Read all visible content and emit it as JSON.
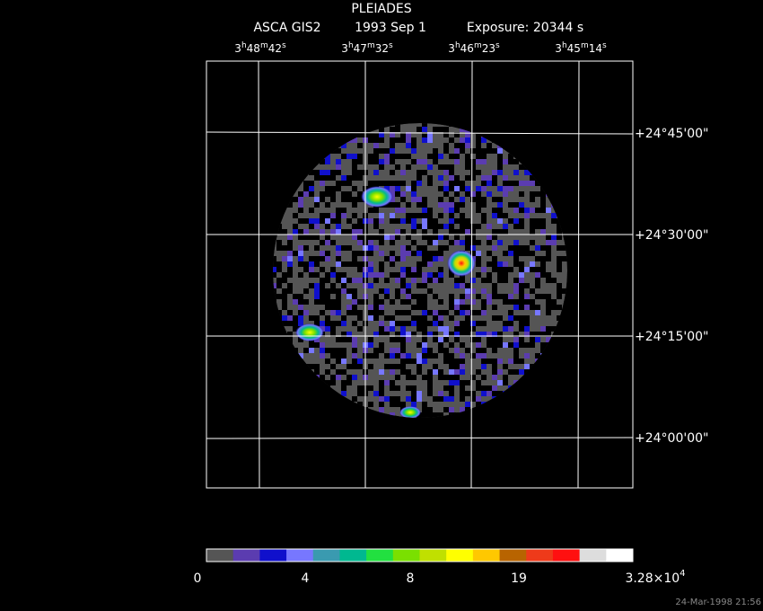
{
  "header": {
    "title": "PLEIADES",
    "instrument": "ASCA GIS2",
    "date": "1993 Sep  1",
    "exposure": "Exposure: 20344 s"
  },
  "ra_labels": [
    [
      "3",
      "h",
      "48",
      "m",
      "42",
      "s"
    ],
    [
      "3",
      "h",
      "47",
      "m",
      "32",
      "s"
    ],
    [
      "3",
      "h",
      "46",
      "m",
      "23",
      "s"
    ],
    [
      "3",
      "h",
      "45",
      "m",
      "14",
      "s"
    ]
  ],
  "dec_labels": [
    "+24°45'00\"",
    "+24°30'00\"",
    "+24°15'00\"",
    "+24°00'00\""
  ],
  "colorbar": {
    "colors": [
      "#555555",
      "#5b3cb0",
      "#1010cc",
      "#7777ff",
      "#3a9ab0",
      "#00b890",
      "#22e040",
      "#7ae000",
      "#c0e000",
      "#ffff00",
      "#ffc800",
      "#b86400",
      "#ee3a1a",
      "#ff1010",
      "#dddddd",
      "#ffffff"
    ],
    "labels": [
      "0",
      "4",
      "8",
      "19"
    ],
    "max_label": {
      "mantissa": "3.28×10",
      "exponent": "4"
    }
  },
  "timestamp": "24-Mar-1998 21:56"
}
